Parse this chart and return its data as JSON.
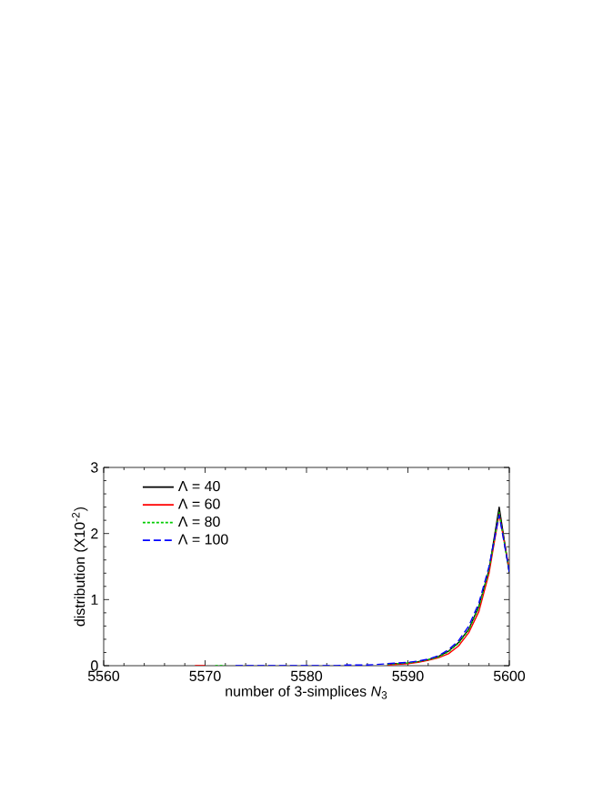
{
  "chart_data": {
    "type": "line",
    "xlabel": "number of 3-simplices *N*$_{3}$",
    "ylabel": "distribution (X10$^{-2}$)",
    "x": [
      5569,
      5570,
      5571,
      5572,
      5573,
      5574,
      5575,
      5576,
      5577,
      5578,
      5579,
      5580,
      5581,
      5582,
      5583,
      5584,
      5585,
      5586,
      5587,
      5588,
      5589,
      5590,
      5591,
      5592,
      5593,
      5594,
      5595,
      5596,
      5597,
      5598,
      5599,
      5600
    ],
    "series": [
      {
        "name": "Λ = 40",
        "color": "#000000",
        "line_style": "solid",
        "values": [
          null,
          null,
          null,
          null,
          null,
          null,
          null,
          null,
          null,
          null,
          null,
          null,
          null,
          null,
          null,
          null,
          null,
          null,
          null,
          0.02,
          0.03,
          0.04,
          0.06,
          0.09,
          0.14,
          0.22,
          0.35,
          0.55,
          0.9,
          1.45,
          2.4,
          1.4
        ]
      },
      {
        "name": "Λ = 60",
        "color": "#ff0000",
        "line_style": "solid",
        "values": [
          0,
          0,
          null,
          null,
          null,
          null,
          null,
          null,
          null,
          null,
          null,
          null,
          null,
          null,
          null,
          null,
          null,
          null,
          null,
          0.01,
          0.02,
          0.03,
          0.05,
          0.08,
          0.12,
          0.18,
          0.3,
          0.5,
          0.82,
          1.4,
          2.3,
          1.45
        ]
      },
      {
        "name": "Λ = 80",
        "color": "#00cc00",
        "line_style": "dotted",
        "values": [
          null,
          null,
          0,
          0,
          null,
          null,
          null,
          null,
          null,
          null,
          null,
          null,
          null,
          null,
          null,
          null,
          null,
          null,
          null,
          0.02,
          0.03,
          0.04,
          0.06,
          0.09,
          0.13,
          0.21,
          0.34,
          0.54,
          0.88,
          1.45,
          2.32,
          1.42
        ]
      },
      {
        "name": "Λ = 100",
        "color": "#0000ff",
        "line_style": "dashed",
        "values": [
          null,
          null,
          null,
          null,
          0,
          0,
          0,
          0,
          0,
          0,
          0,
          0,
          0,
          0,
          0,
          0.01,
          0.01,
          0.01,
          0.02,
          0.03,
          0.04,
          0.05,
          0.07,
          0.1,
          0.15,
          0.24,
          0.38,
          0.6,
          0.95,
          1.5,
          2.28,
          1.42
        ]
      }
    ],
    "xlim": [
      5560,
      5600
    ],
    "xticks": [
      5560,
      5570,
      5580,
      5590,
      5600
    ],
    "ylim": [
      0,
      3
    ],
    "yticks": [
      0,
      1,
      2,
      3
    ],
    "legend": "top left",
    "grid": false,
    "marker": "none"
  }
}
